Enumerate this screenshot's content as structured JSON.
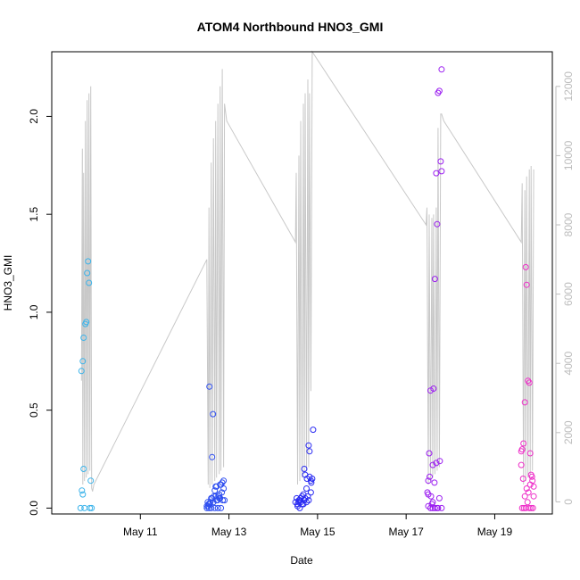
{
  "chart_data": {
    "type": "scatter",
    "title": "ATOM4 Northbound HNO3_GMI",
    "xlabel": "Date",
    "ylabel": "HNO3_GMI",
    "x_ticks": [
      {
        "day": 11,
        "label": "May 11"
      },
      {
        "day": 13,
        "label": "May 13"
      },
      {
        "day": 15,
        "label": "May 15"
      },
      {
        "day": 17,
        "label": "May 17"
      },
      {
        "day": 19,
        "label": "May 19"
      }
    ],
    "xlim": [
      9.0,
      20.3
    ],
    "y_ticks": [
      0.0,
      0.5,
      1.0,
      1.5,
      2.0
    ],
    "y_tick_labels": [
      "0.0",
      "0.5",
      "1.0",
      "1.5",
      "2.0"
    ],
    "ylim": [
      -0.03,
      2.33
    ],
    "y2_ticks": [
      0,
      2000,
      4000,
      6000,
      8000,
      10000,
      12000
    ],
    "y2_tick_labels": [
      "0",
      "2000",
      "4000",
      "6000",
      "8000",
      "10000",
      "12000"
    ],
    "y2lim": [
      -350,
      13000
    ],
    "colors": {
      "flight1": "#3bb3ea",
      "flight2": "#2f4ff0",
      "flight3": "#2a2bf2",
      "flight4": "#9b1ef0",
      "flight5": "#ee2fc8",
      "altitude_line": "#c8c8c8",
      "frame": "#000000",
      "right_axis": "#bdbdbd"
    },
    "series": [
      {
        "name": "flight1",
        "color": "#3bb3ea",
        "x": [
          9.65,
          9.68,
          9.7,
          9.72,
          9.74,
          9.76,
          9.78,
          9.8,
          9.82,
          9.84,
          9.86,
          9.88,
          9.9,
          9.72,
          9.7
        ],
        "y": [
          0.0,
          0.09,
          0.07,
          0.2,
          0.0,
          0.94,
          0.95,
          1.2,
          1.26,
          1.15,
          0.0,
          0.14,
          0.0,
          0.87,
          0.75
        ]
      },
      {
        "name": "flight1b",
        "color": "#3bb3ea",
        "x": [
          9.67
        ],
        "y": [
          0.7
        ]
      },
      {
        "name": "flight2",
        "color": "#2f4ff0",
        "x": [
          12.5,
          12.53,
          12.55,
          12.57,
          12.6,
          12.62,
          12.65,
          12.68,
          12.7,
          12.72,
          12.75,
          12.78,
          12.8,
          12.82,
          12.85,
          12.88,
          12.9,
          12.52,
          12.56,
          12.6,
          12.64,
          12.68,
          12.72,
          12.76,
          12.8,
          12.84,
          12.88,
          12.55,
          12.58,
          12.62,
          12.66,
          12.7,
          12.74,
          12.78,
          12.82,
          12.86,
          12.5,
          12.54
        ],
        "y": [
          0.0,
          0.01,
          0.0,
          0.02,
          0.0,
          0.05,
          0.03,
          0.0,
          0.06,
          0.04,
          0.0,
          0.07,
          0.05,
          0.0,
          0.13,
          0.14,
          0.04,
          0.03,
          0.62,
          0.05,
          0.48,
          0.09,
          0.11,
          0.06,
          0.12,
          0.08,
          0.1,
          0.02,
          0.03,
          0.26,
          0.06,
          0.11,
          0.04,
          0.05,
          0.12,
          0.04,
          0.01,
          0.02
        ]
      },
      {
        "name": "flight3",
        "color": "#2a2bf2",
        "x": [
          14.5,
          14.53,
          14.55,
          14.58,
          14.6,
          14.62,
          14.65,
          14.68,
          14.7,
          14.72,
          14.75,
          14.78,
          14.8,
          14.82,
          14.85,
          14.88,
          14.9,
          14.55,
          14.6,
          14.65,
          14.7,
          14.75,
          14.8,
          14.85,
          14.62,
          14.68,
          14.72,
          14.76,
          14.82,
          14.86,
          14.58
        ],
        "y": [
          0.03,
          0.05,
          0.02,
          0.04,
          0.0,
          0.03,
          0.06,
          0.02,
          0.04,
          0.05,
          0.03,
          0.06,
          0.04,
          0.16,
          0.14,
          0.15,
          0.4,
          0.01,
          0.04,
          0.02,
          0.2,
          0.1,
          0.32,
          0.08,
          0.05,
          0.07,
          0.17,
          0.15,
          0.29,
          0.13,
          0.03
        ]
      },
      {
        "name": "flight4",
        "color": "#9b1ef0",
        "x": [
          17.48,
          17.5,
          17.52,
          17.55,
          17.58,
          17.6,
          17.62,
          17.65,
          17.68,
          17.7,
          17.72,
          17.75,
          17.78,
          17.8,
          17.5,
          17.53,
          17.56,
          17.6,
          17.64,
          17.68,
          17.72,
          17.76,
          17.8,
          17.5,
          17.55,
          17.6,
          17.65,
          17.7,
          17.75,
          17.8
        ],
        "y": [
          0.08,
          0.14,
          0.28,
          0.6,
          0.02,
          0.03,
          0.61,
          1.17,
          1.71,
          1.45,
          2.12,
          2.13,
          1.77,
          2.24,
          0.01,
          0.16,
          0.06,
          0.22,
          0.13,
          0.23,
          0.0,
          0.24,
          1.72,
          0.07,
          0.0,
          0.0,
          0.0,
          0.0,
          0.05,
          0.0
        ]
      },
      {
        "name": "flight5",
        "color": "#ee2fc8",
        "x": [
          19.6,
          19.62,
          19.65,
          19.68,
          19.7,
          19.72,
          19.75,
          19.78,
          19.8,
          19.82,
          19.85,
          19.88,
          19.6,
          19.64,
          19.68,
          19.72,
          19.76,
          19.8,
          19.84,
          19.88,
          19.62,
          19.66,
          19.7,
          19.74,
          19.78,
          19.82,
          19.86
        ],
        "y": [
          0.29,
          0.3,
          0.33,
          0.54,
          1.23,
          1.14,
          0.65,
          0.64,
          0.28,
          0.17,
          0.14,
          0.11,
          0.22,
          0.15,
          0.06,
          0.1,
          0.08,
          0.12,
          0.16,
          0.06,
          0.0,
          0.0,
          0.0,
          0.03,
          0.0,
          0.0,
          0.0
        ]
      }
    ],
    "altitude_line": {
      "name": "altitude",
      "axis": "right",
      "color": "#c8c8c8",
      "x": [
        9.67,
        9.69,
        9.7,
        9.72,
        9.74,
        9.76,
        9.78,
        9.8,
        9.82,
        9.84,
        9.86,
        9.88,
        9.9,
        9.92,
        9.95,
        12.5,
        12.53,
        12.55,
        12.57,
        12.6,
        12.62,
        12.65,
        12.68,
        12.7,
        12.72,
        12.75,
        12.78,
        12.8,
        12.82,
        12.85,
        12.88,
        12.9,
        12.92,
        12.95,
        14.5,
        14.52,
        14.55,
        14.58,
        14.6,
        14.62,
        14.65,
        14.68,
        14.7,
        14.72,
        14.75,
        14.78,
        14.8,
        14.82,
        14.85,
        14.88,
        17.45,
        17.47,
        17.5,
        17.52,
        17.55,
        17.58,
        17.6,
        17.62,
        17.65,
        17.68,
        17.7,
        17.72,
        17.75,
        17.78,
        17.8,
        17.85,
        19.6,
        19.62,
        19.65,
        19.68,
        19.7,
        19.72,
        19.75,
        19.78,
        19.8,
        19.82,
        19.85,
        19.88
      ],
      "y": [
        3500,
        10200,
        500,
        9500,
        600,
        11000,
        700,
        11600,
        800,
        11800,
        900,
        12000,
        400,
        300,
        500,
        7000,
        500,
        8500,
        400,
        9800,
        500,
        10500,
        600,
        11000,
        700,
        11500,
        800,
        12000,
        900,
        12500,
        1000,
        11500,
        11300,
        11000,
        7500,
        9500,
        500,
        10000,
        600,
        11000,
        700,
        11500,
        800,
        11800,
        900,
        12200,
        1000,
        11800,
        3200,
        13000,
        8000,
        8500,
        500,
        8300,
        600,
        8200,
        700,
        8300,
        800,
        8500,
        900,
        10800,
        1000,
        11200,
        11200,
        11000,
        7500,
        9200,
        500,
        9000,
        600,
        9400,
        700,
        9600,
        800,
        9700,
        900,
        9600
      ]
    }
  }
}
